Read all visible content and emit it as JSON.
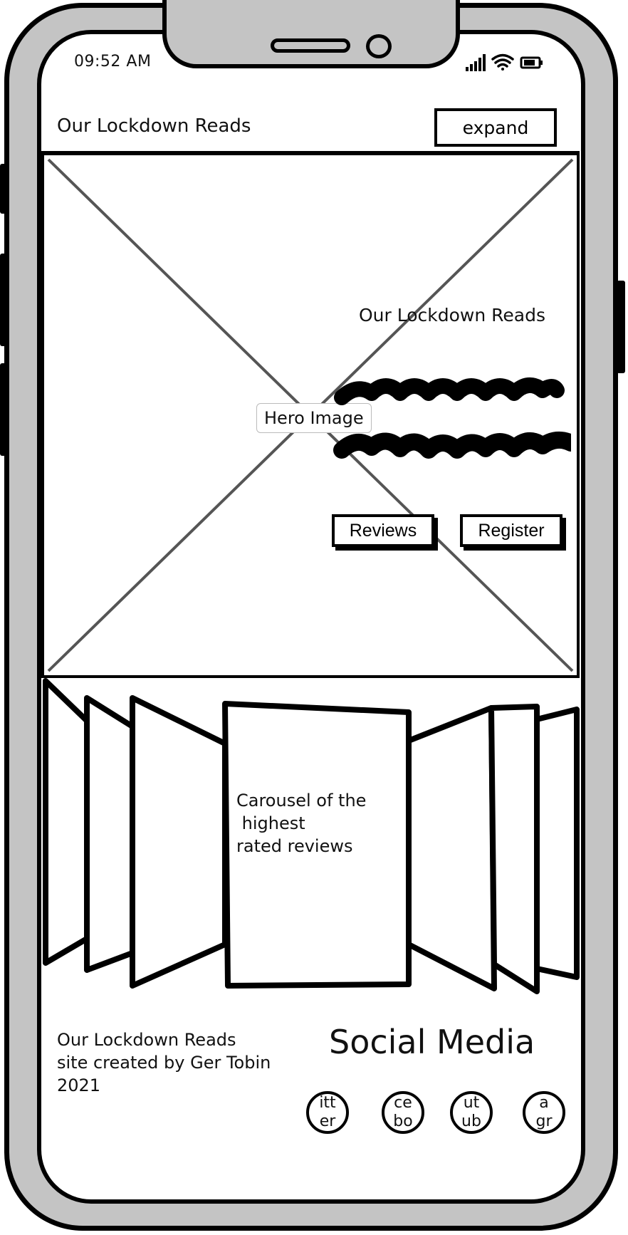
{
  "status_bar": {
    "time": "09:52 AM",
    "signal_icon": "cell-signal-icon",
    "wifi_icon": "wifi-icon",
    "battery_icon": "battery-icon"
  },
  "header": {
    "title": "Our Lockdown Reads",
    "expand_label": "expand"
  },
  "hero": {
    "image_label": "Hero Image",
    "title": "Our Lockdown Reads",
    "buttons": [
      {
        "label": "Reviews"
      },
      {
        "label": "Register"
      }
    ]
  },
  "carousel": {
    "text": "Carousel of the\n highest\nrated reviews"
  },
  "footer": {
    "credit": "Our Lockdown Reads\nsite created by Ger Tobin\n2021",
    "social_heading": "Social Media",
    "social_icons": [
      {
        "label": "itt\ner",
        "icon": "twitter-icon"
      },
      {
        "label": "ce\nbo",
        "icon": "facebook-icon"
      },
      {
        "label": "ut\nub",
        "icon": "youtube-icon"
      },
      {
        "label": "a\ngr",
        "icon": "instagram-icon"
      }
    ]
  },
  "colors": {
    "phone_body": "#c4c4c4",
    "outline": "#000000",
    "screen": "#ffffff",
    "placeholder_cross": "#555555"
  }
}
